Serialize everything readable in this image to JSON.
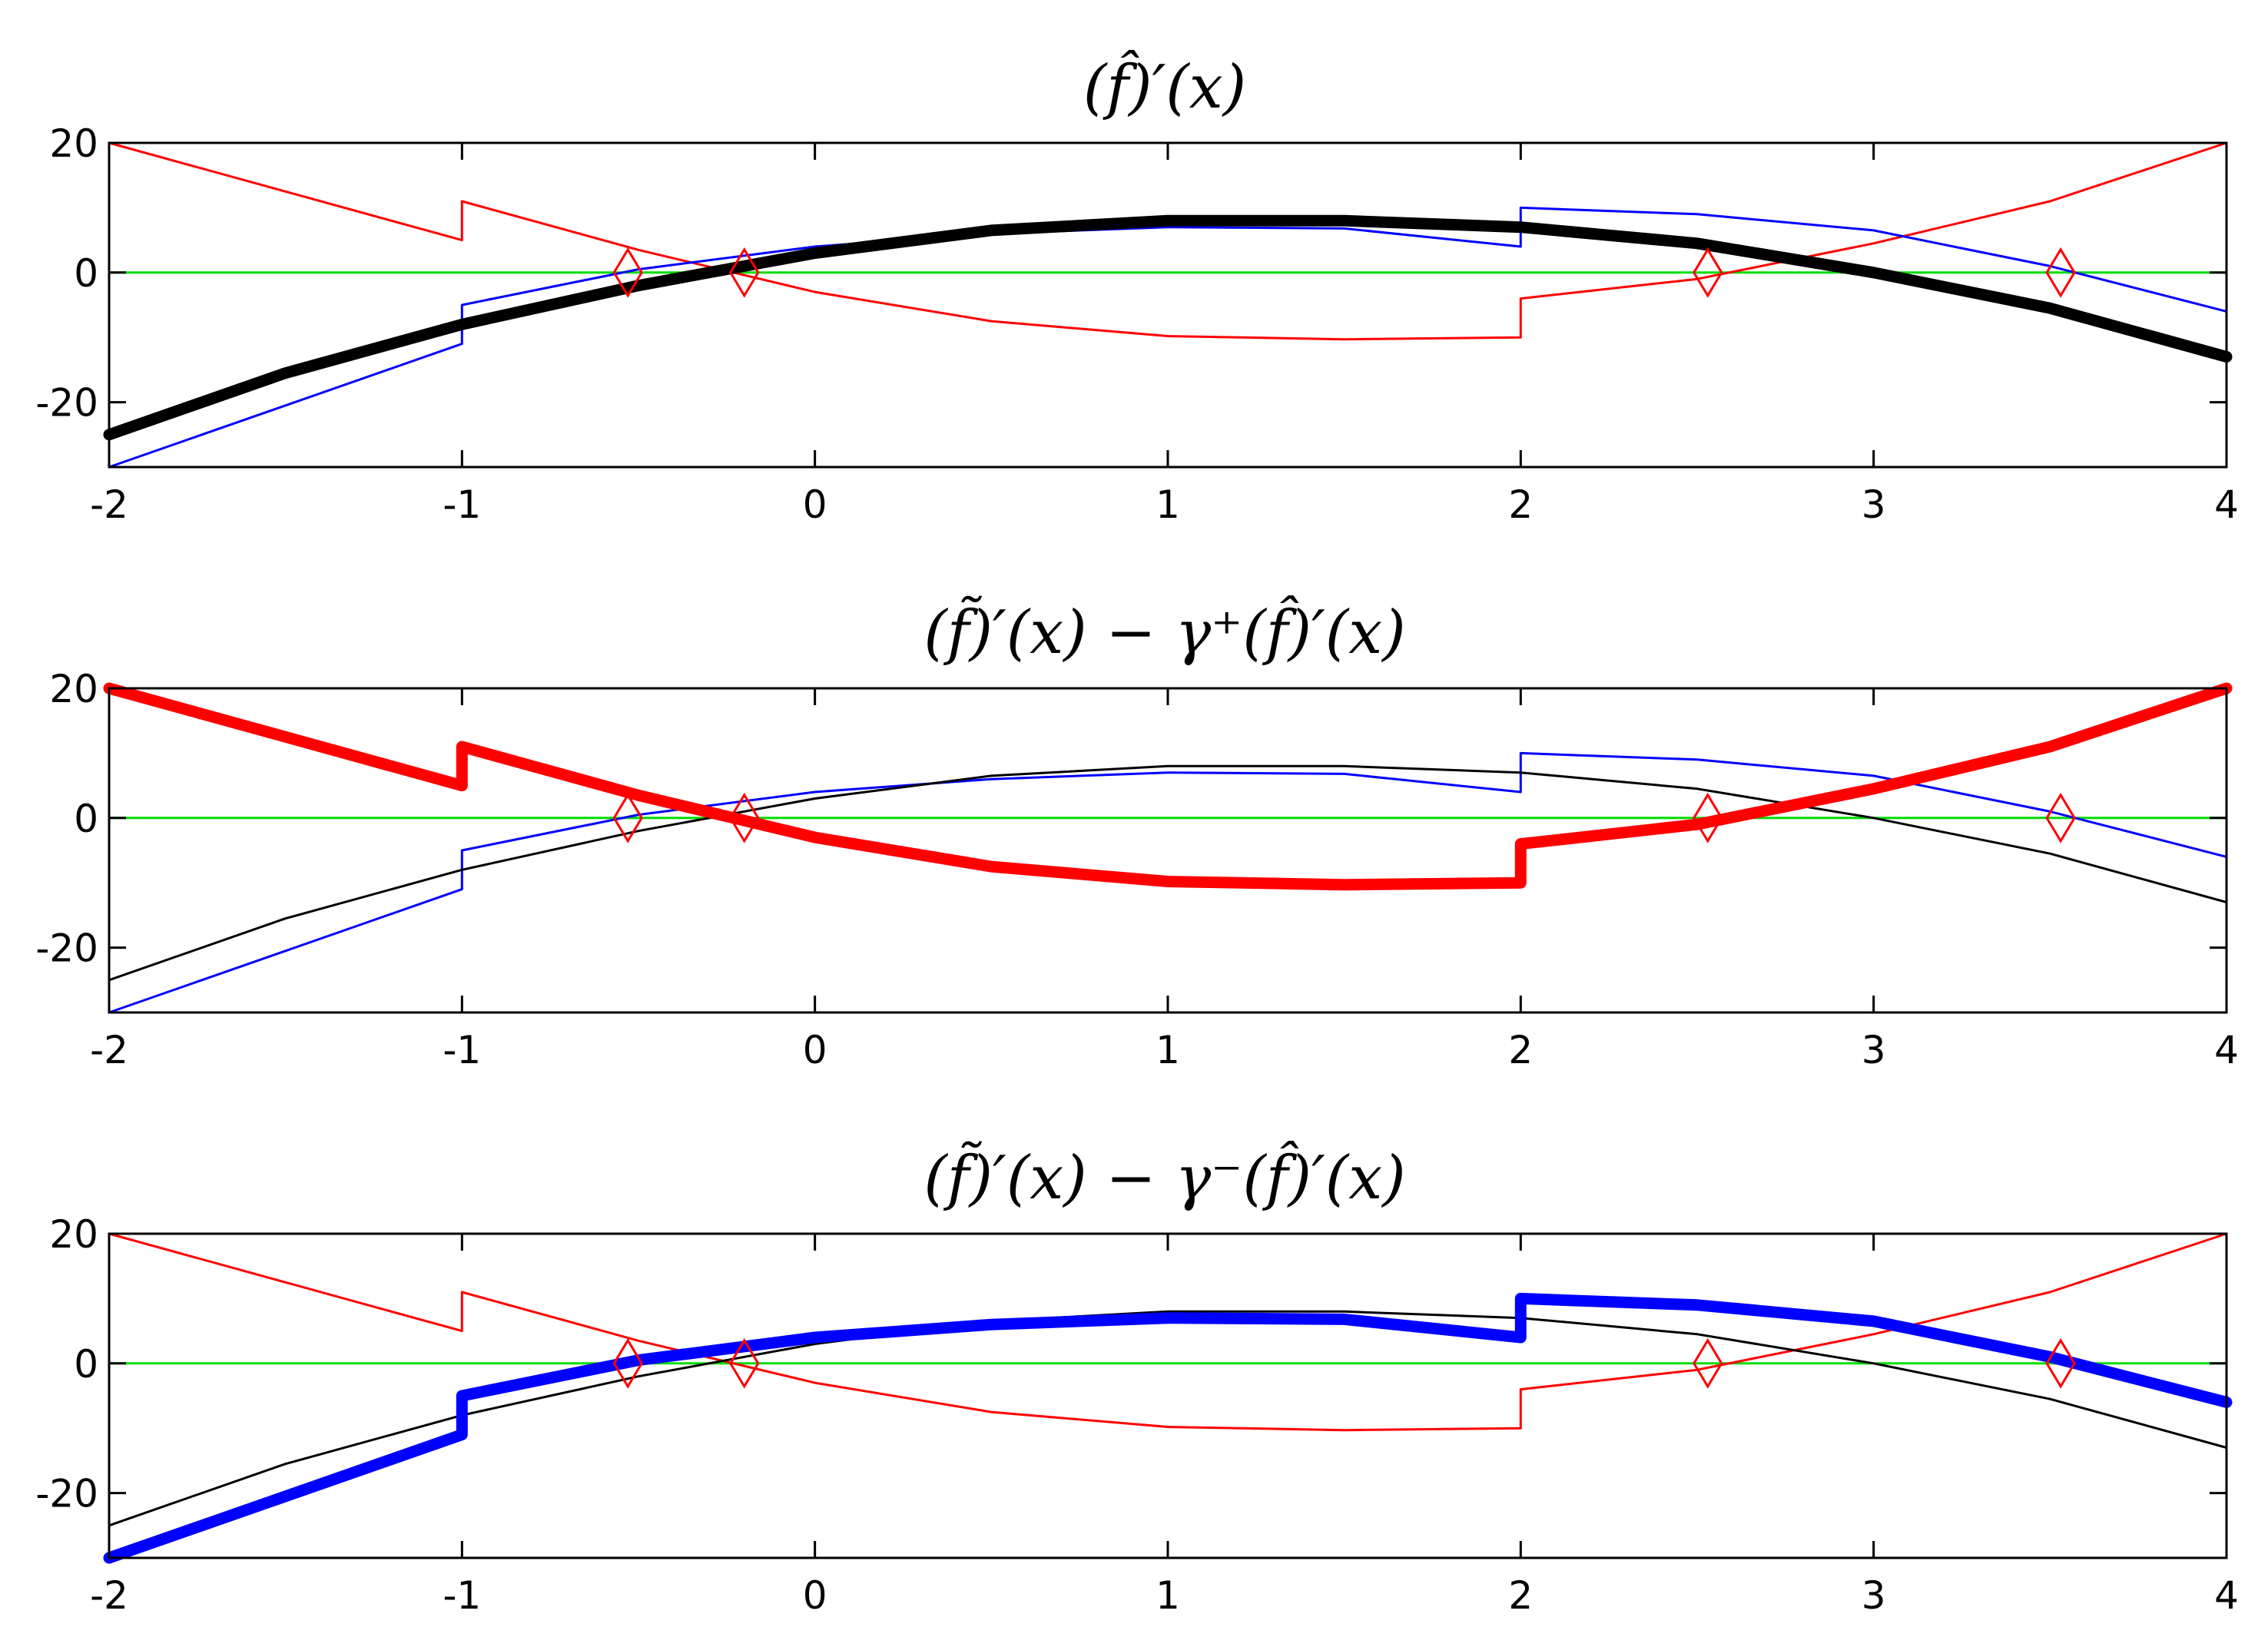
{
  "chart_data": [
    {
      "type": "line",
      "title": "(f̂)′(x)",
      "xlim": [
        -2,
        4
      ],
      "ylim": [
        -30,
        20
      ],
      "xticks": [
        -2,
        -1,
        0,
        1,
        2,
        3,
        4
      ],
      "yticks": [
        -20,
        0,
        20
      ],
      "grid": false,
      "highlight": "fhat",
      "series": [
        {
          "key": "red",
          "x": [
            -2,
            -1,
            -1,
            -0.5,
            0,
            0.5,
            1,
            1.5,
            2,
            2,
            2.5,
            3,
            3.5,
            4
          ],
          "y": [
            20,
            5,
            11,
            3.5,
            -3,
            -7.5,
            -9.8,
            -10.3,
            -10,
            -4,
            -1,
            4.5,
            11,
            20
          ]
        },
        {
          "key": "blue",
          "x": [
            -2,
            -1.5,
            -1,
            -1,
            -0.5,
            0,
            0.5,
            1,
            1.5,
            2,
            2,
            2.5,
            3,
            3.5,
            4
          ],
          "y": [
            -30,
            -20.5,
            -11,
            -5,
            0.5,
            4,
            6,
            7,
            6.8,
            4,
            10,
            9,
            6.5,
            1,
            -6
          ]
        },
        {
          "key": "fhat",
          "x": [
            -2,
            -1.5,
            -1,
            -0.5,
            0,
            0.5,
            1,
            1.5,
            2,
            2.5,
            3,
            3.5,
            4
          ],
          "y": [
            -25,
            -15.5,
            -8,
            -2,
            3,
            6.5,
            8,
            8,
            7,
            4.5,
            0,
            -5.5,
            -13
          ]
        }
      ],
      "markers": {
        "x": [
          -0.53,
          -0.2,
          2.53,
          3.53
        ],
        "y": [
          0,
          0,
          0,
          0
        ],
        "color": "#ff0000"
      },
      "zero_line_color": "#00dd00"
    },
    {
      "type": "line",
      "title": "(f̃)′(x) − γ⁺(f̂)′(x)",
      "xlim": [
        -2,
        4
      ],
      "ylim": [
        -30,
        20
      ],
      "xticks": [
        -2,
        -1,
        0,
        1,
        2,
        3,
        4
      ],
      "yticks": [
        -20,
        0,
        20
      ],
      "grid": false,
      "highlight": "red",
      "series": [
        {
          "key": "red",
          "x": [
            -2,
            -1,
            -1,
            -0.5,
            0,
            0.5,
            1,
            1.5,
            2,
            2,
            2.5,
            3,
            3.5,
            4
          ],
          "y": [
            20,
            5,
            11,
            3.5,
            -3,
            -7.5,
            -9.8,
            -10.3,
            -10,
            -4,
            -1,
            4.5,
            11,
            20
          ]
        },
        {
          "key": "blue",
          "x": [
            -2,
            -1.5,
            -1,
            -1,
            -0.5,
            0,
            0.5,
            1,
            1.5,
            2,
            2,
            2.5,
            3,
            3.5,
            4
          ],
          "y": [
            -30,
            -20.5,
            -11,
            -5,
            0.5,
            4,
            6,
            7,
            6.8,
            4,
            10,
            9,
            6.5,
            1,
            -6
          ]
        },
        {
          "key": "fhat",
          "x": [
            -2,
            -1.5,
            -1,
            -0.5,
            0,
            0.5,
            1,
            1.5,
            2,
            2.5,
            3,
            3.5,
            4
          ],
          "y": [
            -25,
            -15.5,
            -8,
            -2,
            3,
            6.5,
            8,
            8,
            7,
            4.5,
            0,
            -5.5,
            -13
          ]
        }
      ],
      "markers": {
        "x": [
          -0.53,
          -0.2,
          2.53,
          3.53
        ],
        "y": [
          0,
          0,
          0,
          0
        ],
        "color": "#ff0000"
      },
      "zero_line_color": "#00dd00"
    },
    {
      "type": "line",
      "title": "(f̃)′(x) − γ⁻(f̂)′(x)",
      "xlim": [
        -2,
        4
      ],
      "ylim": [
        -30,
        20
      ],
      "xticks": [
        -2,
        -1,
        0,
        1,
        2,
        3,
        4
      ],
      "yticks": [
        -20,
        0,
        20
      ],
      "grid": false,
      "highlight": "blue",
      "series": [
        {
          "key": "red",
          "x": [
            -2,
            -1,
            -1,
            -0.5,
            0,
            0.5,
            1,
            1.5,
            2,
            2,
            2.5,
            3,
            3.5,
            4
          ],
          "y": [
            20,
            5,
            11,
            3.5,
            -3,
            -7.5,
            -9.8,
            -10.3,
            -10,
            -4,
            -1,
            4.5,
            11,
            20
          ]
        },
        {
          "key": "blue",
          "x": [
            -2,
            -1.5,
            -1,
            -1,
            -0.5,
            0,
            0.5,
            1,
            1.5,
            2,
            2,
            2.5,
            3,
            3.5,
            4
          ],
          "y": [
            -30,
            -20.5,
            -11,
            -5,
            0.5,
            4,
            6,
            7,
            6.8,
            4,
            10,
            9,
            6.5,
            1,
            -6
          ]
        },
        {
          "key": "fhat",
          "x": [
            -2,
            -1.5,
            -1,
            -0.5,
            0,
            0.5,
            1,
            1.5,
            2,
            2.5,
            3,
            3.5,
            4
          ],
          "y": [
            -25,
            -15.5,
            -8,
            -2,
            3,
            6.5,
            8,
            8,
            7,
            4.5,
            0,
            -5.5,
            -13
          ]
        }
      ],
      "markers": {
        "x": [
          -0.53,
          -0.2,
          2.53,
          3.53
        ],
        "y": [
          0,
          0,
          0,
          0
        ],
        "color": "#ff0000"
      },
      "zero_line_color": "#00dd00"
    }
  ],
  "colors": {
    "red": "#ff0000",
    "blue": "#0000ff",
    "fhat": "#000000",
    "zero": "#00dd00"
  }
}
